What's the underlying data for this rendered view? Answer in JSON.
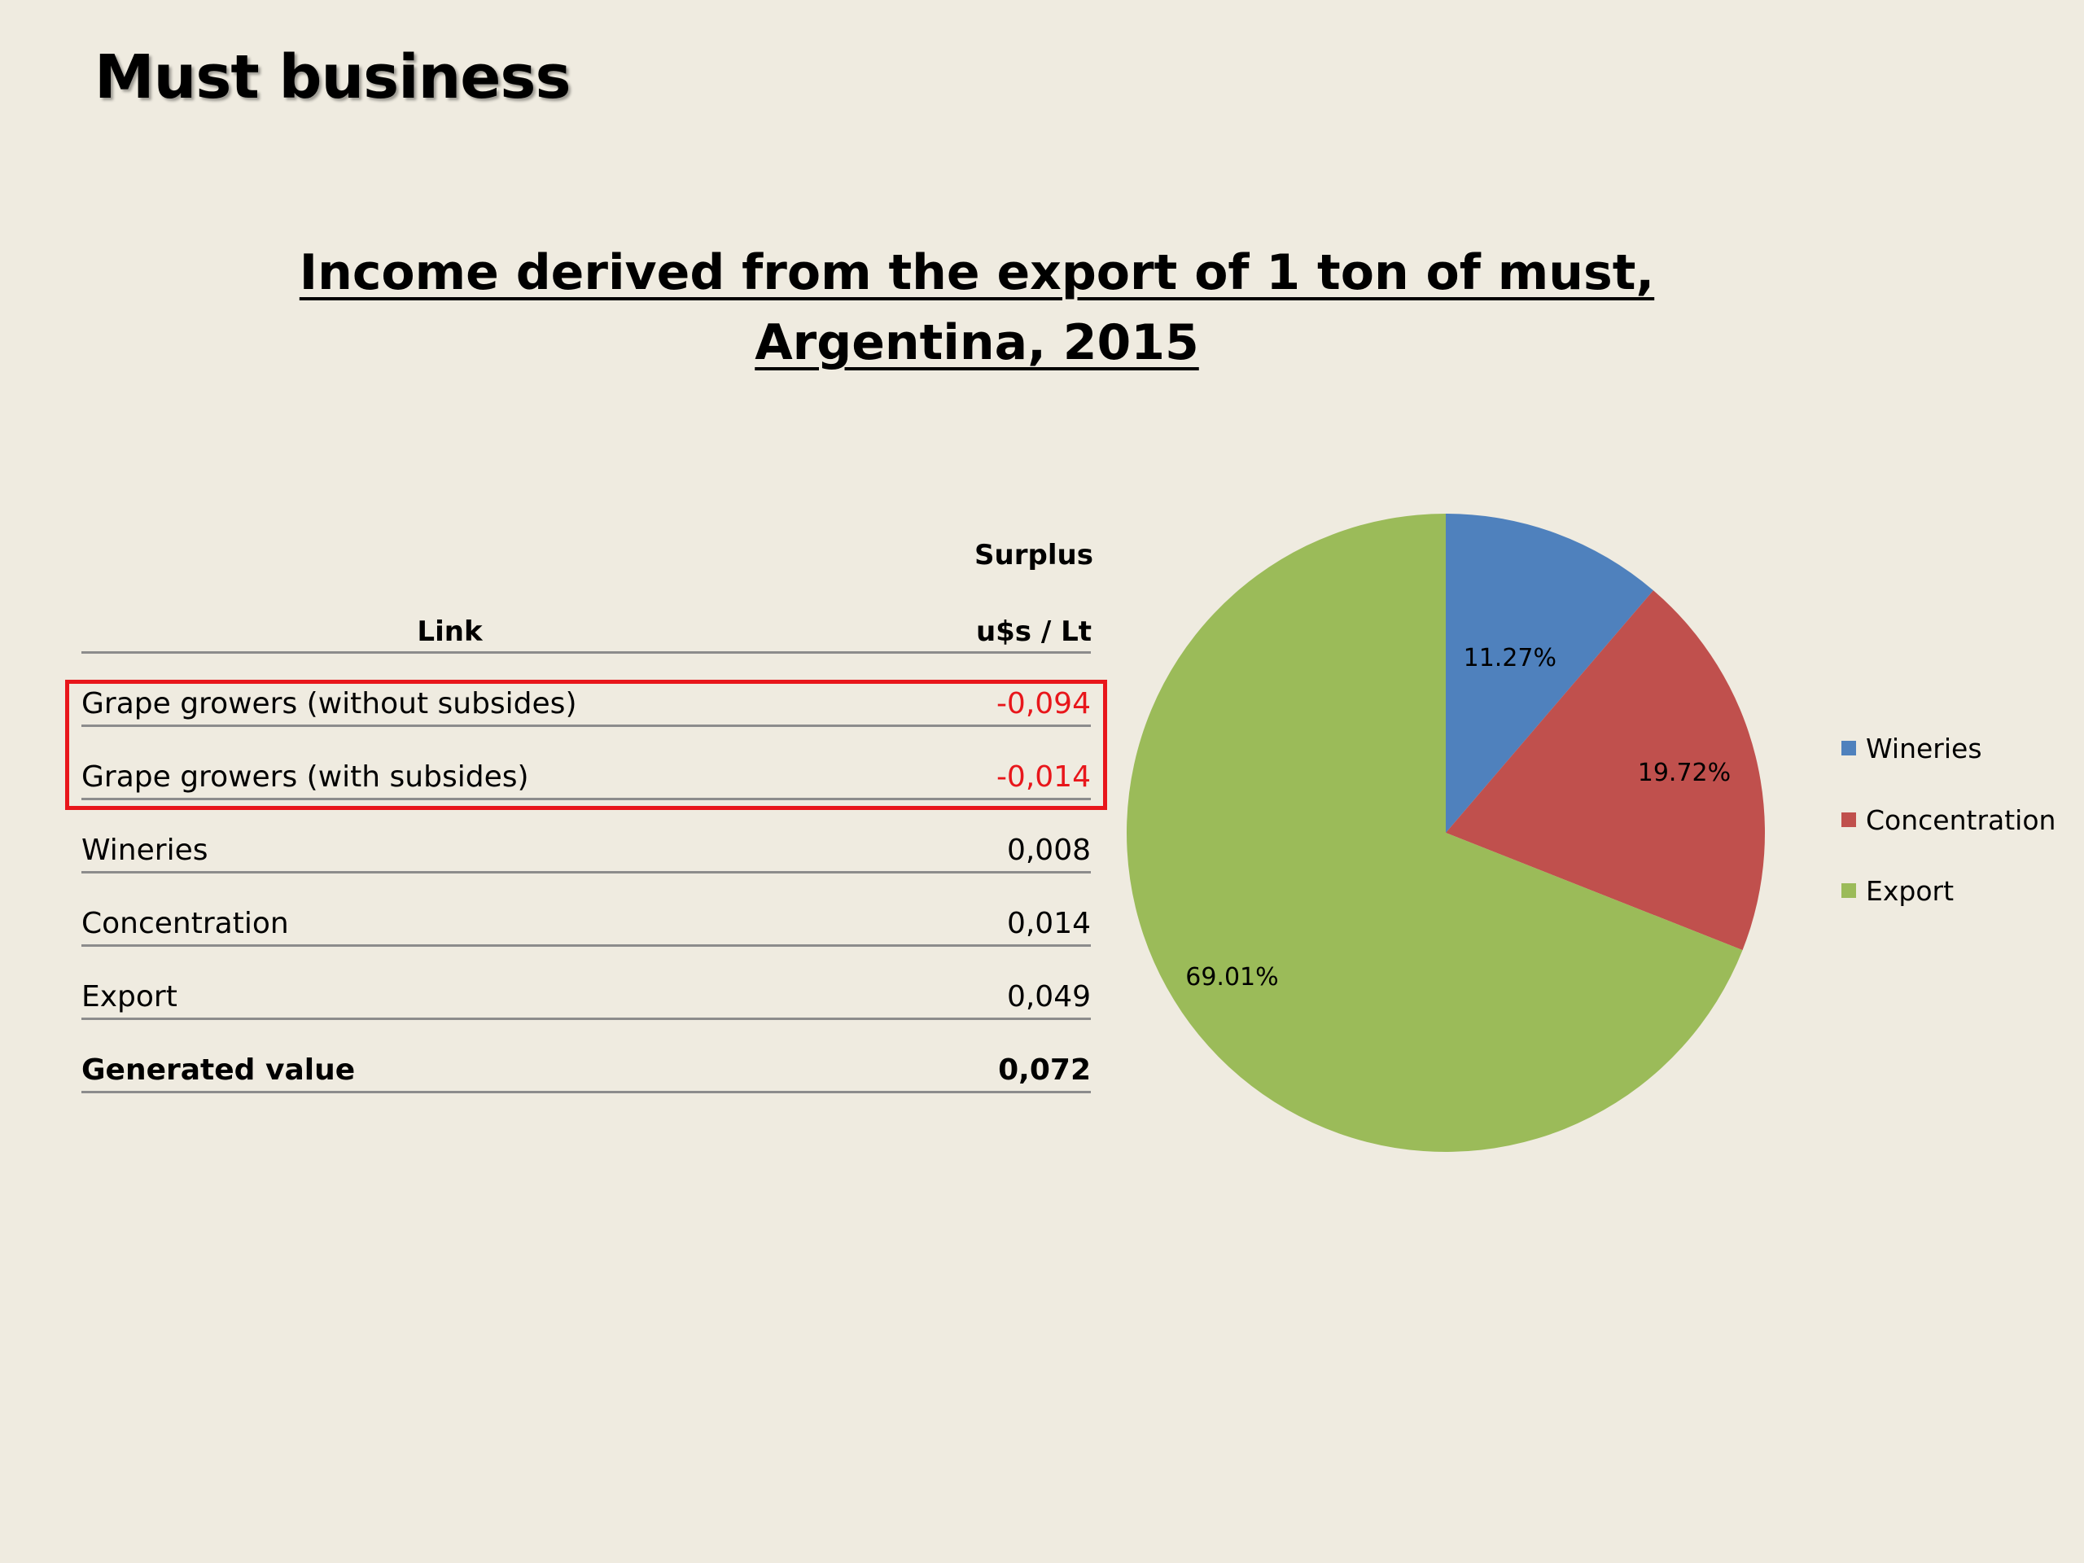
{
  "slide": {
    "title": "Must business"
  },
  "table": {
    "header_top": "Surplus",
    "header_link": "Link",
    "header_unit": "u$s / Lt",
    "rows": [
      {
        "label": "Grape growers (without subsides)",
        "value": "-0,094"
      },
      {
        "label": "Grape growers (with subsides)",
        "value": "-0,014"
      },
      {
        "label": "Wineries",
        "value": "0,008"
      },
      {
        "label": "Concentration",
        "value": "0,014"
      },
      {
        "label": "Export",
        "value": "0,049"
      },
      {
        "label": "Generated value",
        "value": "0,072"
      }
    ],
    "highlight_color": "#e8161b"
  },
  "chart_data": {
    "type": "pie",
    "title": "Income derived from the export of 1 ton of must, Argentina, 2015",
    "title_lines": [
      "Income derived from the export of 1 ton of must,",
      "Argentina, 2015"
    ],
    "categories": [
      "Wineries",
      "Concentration",
      "Export"
    ],
    "values": [
      11.27,
      19.72,
      69.01
    ],
    "data_labels": [
      "11.27%",
      "19.72%",
      "69.01%"
    ],
    "colors": [
      "#4f81bd",
      "#c0504d",
      "#9bbb59"
    ],
    "legend_position": "right"
  }
}
